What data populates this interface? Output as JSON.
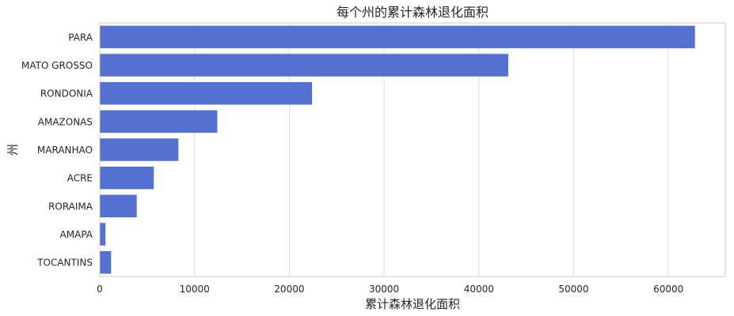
{
  "chart_data": {
    "type": "bar",
    "orientation": "horizontal",
    "title": "每个州的累计森林退化面积",
    "xlabel": "累计森林退化面积",
    "ylabel": "州",
    "categories": [
      "PARA",
      "MATO GROSSO",
      "RONDONIA",
      "AMAZONAS",
      "MARANHAO",
      "ACRE",
      "RORAIMA",
      "AMAPA",
      "TOCANTINS"
    ],
    "values": [
      62800,
      43100,
      22400,
      12400,
      8300,
      5700,
      3900,
      600,
      1200
    ],
    "xlim": [
      0,
      66000
    ],
    "xticks": [
      0,
      10000,
      20000,
      30000,
      40000,
      50000,
      60000
    ],
    "bar_color": "#5470d0",
    "grid": "vertical"
  }
}
